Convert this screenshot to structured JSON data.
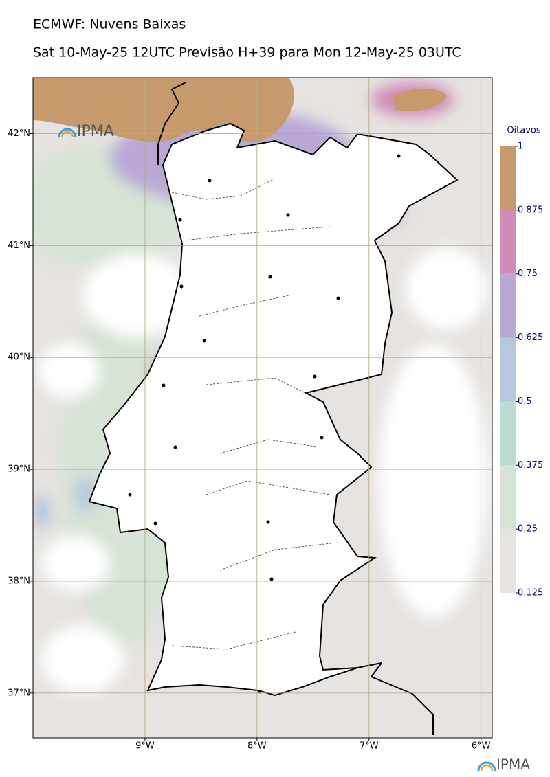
{
  "map": {
    "title": "ECMWF: Nuvens Baixas",
    "subtitle": "Sat 10-May-25 12UTC Previsão H+39 para Mon 12-May-25 03UTC",
    "logo": "IPMA",
    "xlim": [
      -10,
      -5.9
    ],
    "ylim": [
      36.6,
      42.5
    ],
    "xticks": [
      {
        "value": -9,
        "label": "9°W"
      },
      {
        "value": -8,
        "label": "8°W"
      },
      {
        "value": -7,
        "label": "7°W"
      },
      {
        "value": -6,
        "label": "6°W"
      }
    ],
    "yticks": [
      {
        "value": 37,
        "label": "37°N"
      },
      {
        "value": 38,
        "label": "38°N"
      },
      {
        "value": 39,
        "label": "39°N"
      },
      {
        "value": 40,
        "label": "40°N"
      },
      {
        "value": 41,
        "label": "41°N"
      },
      {
        "value": 42,
        "label": "42°N"
      }
    ],
    "colorbar": {
      "title": "Oitavos",
      "levels": [
        0.125,
        0.25,
        0.375,
        0.5,
        0.625,
        0.75,
        0.875,
        1
      ],
      "colors": [
        "#e6e3e0",
        "#d7e3d6",
        "#bcdcd3",
        "#b6c9db",
        "#b8a8d6",
        "#d08bb7",
        "#c79a6e"
      ]
    }
  }
}
